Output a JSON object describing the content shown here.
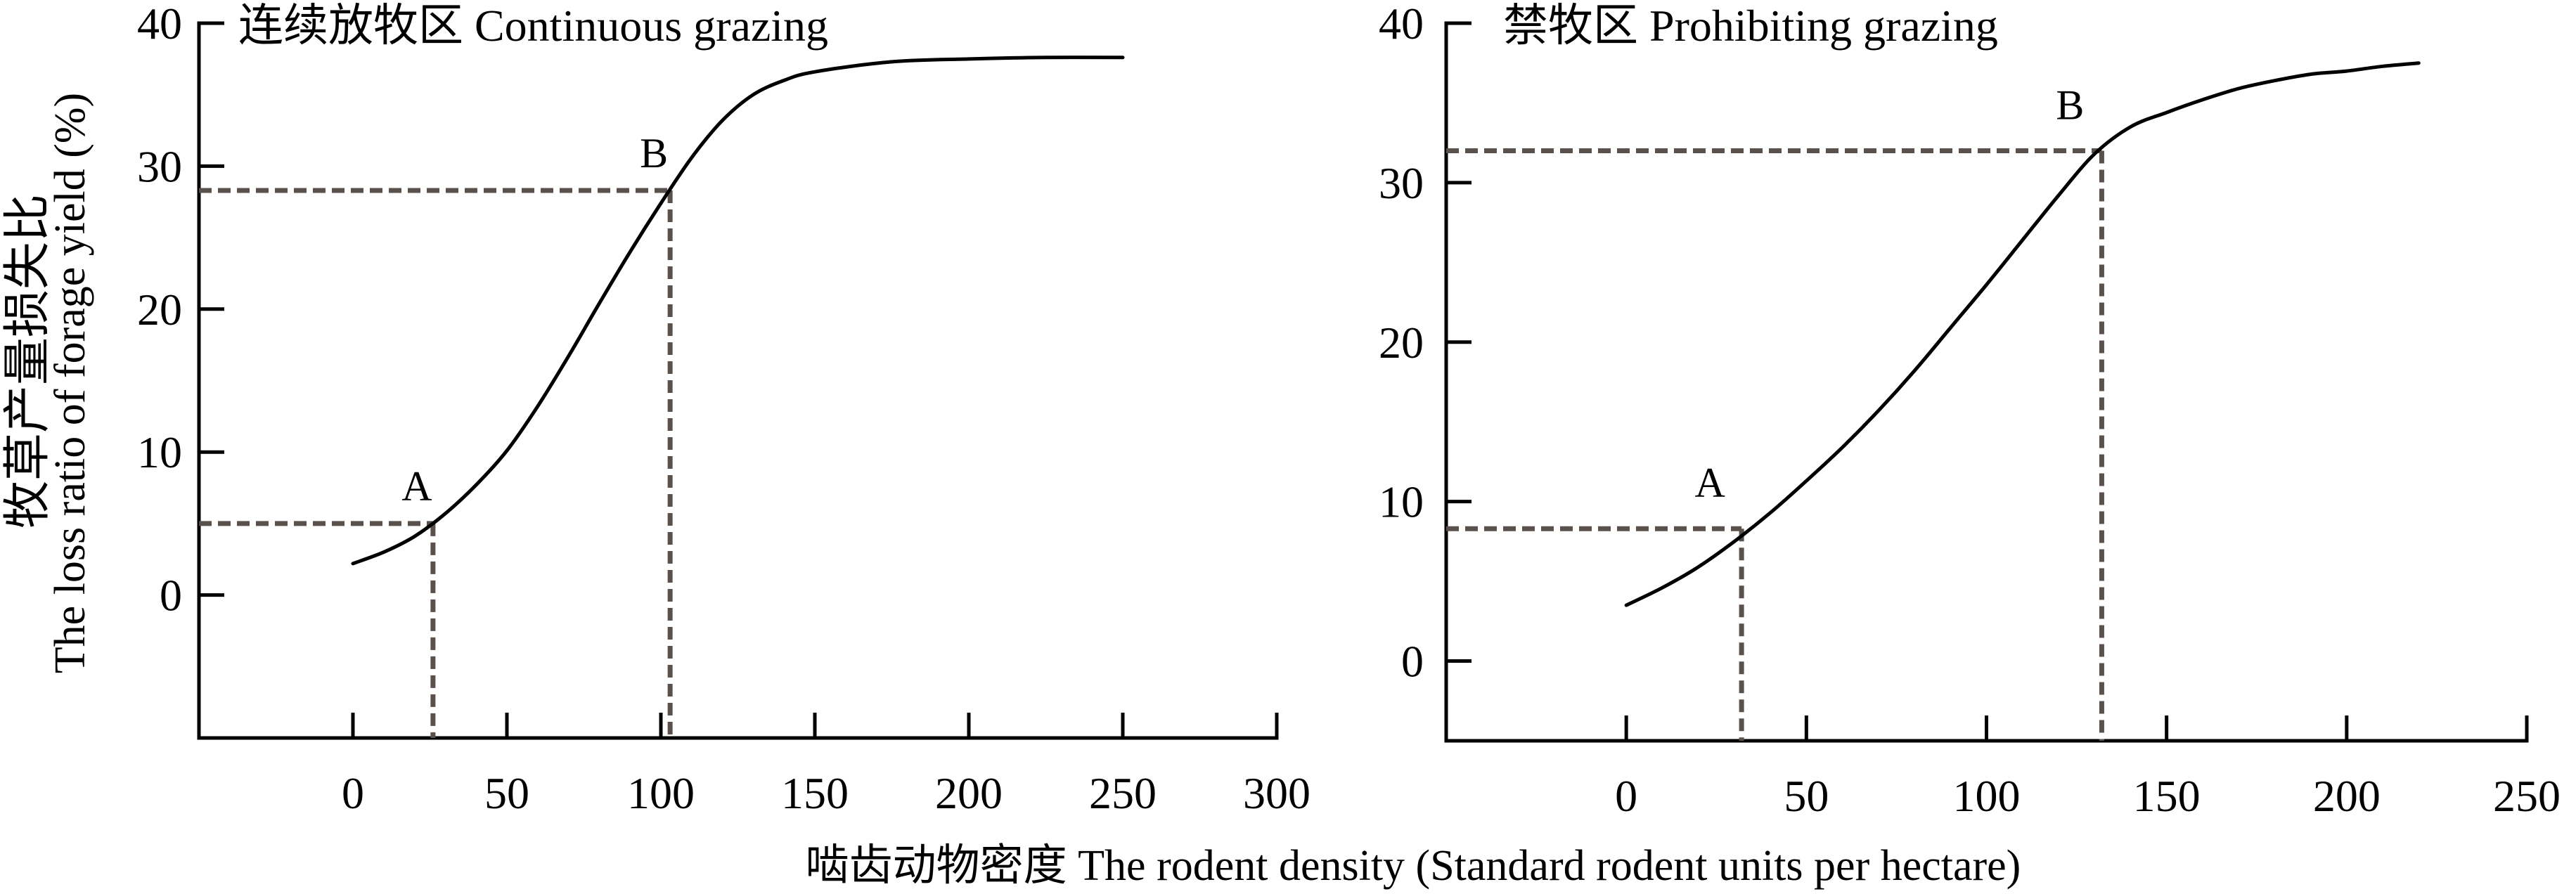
{
  "xlabel": "啮齿动物密度 The rodent density (Standard rodent units per hectare)",
  "colors": {
    "background": "#ffffff",
    "axis": "#000000",
    "curve": "#000000",
    "guide": "#5b514c"
  },
  "chart_data": [
    {
      "type": "line",
      "title": "连续放牧区 Continuous grazing",
      "ylabel": [
        "牧草产量损失比",
        "The loss ratio of forage yield (%)"
      ],
      "xlim": [
        -50,
        300
      ],
      "ylim": [
        -10,
        40
      ],
      "xticks": [
        0,
        50,
        100,
        150,
        200,
        250,
        300
      ],
      "yticks": [
        0,
        10,
        20,
        30,
        40
      ],
      "grid": false,
      "x": [
        0,
        10,
        20,
        30,
        40,
        50,
        60,
        70,
        80,
        90,
        100,
        110,
        120,
        130,
        140,
        150,
        175,
        200,
        225,
        250
      ],
      "series": [
        {
          "values": [
            2.2,
            3.0,
            4.1,
            5.7,
            7.7,
            10.1,
            13.2,
            16.7,
            20.4,
            24.0,
            27.4,
            30.6,
            33.2,
            35.0,
            36.0,
            36.6,
            37.3,
            37.5,
            37.6,
            37.6
          ]
        }
      ],
      "points": [
        {
          "label": "A",
          "x": 26,
          "y": 5.0
        },
        {
          "label": "B",
          "x": 103,
          "y": 28.3
        }
      ]
    },
    {
      "type": "line",
      "title": "禁牧区 Prohibiting grazing",
      "xlim": [
        -50,
        250
      ],
      "ylim": [
        -5,
        40
      ],
      "xticks": [
        0,
        50,
        100,
        150,
        200,
        250
      ],
      "yticks": [
        0,
        10,
        20,
        30,
        40
      ],
      "grid": false,
      "x": [
        0,
        10,
        20,
        30,
        40,
        50,
        60,
        70,
        80,
        90,
        100,
        110,
        120,
        130,
        140,
        150,
        160,
        170,
        180,
        190,
        200,
        210,
        220
      ],
      "series": [
        {
          "values": [
            3.5,
            4.6,
            5.9,
            7.5,
            9.3,
            11.3,
            13.4,
            15.7,
            18.2,
            20.9,
            23.6,
            26.4,
            29.2,
            31.8,
            33.5,
            34.4,
            35.2,
            35.9,
            36.4,
            36.8,
            37.0,
            37.3,
            37.5
          ]
        }
      ],
      "points": [
        {
          "label": "A",
          "x": 32,
          "y": 8.3
        },
        {
          "label": "B",
          "x": 132,
          "y": 32.0
        }
      ]
    }
  ]
}
